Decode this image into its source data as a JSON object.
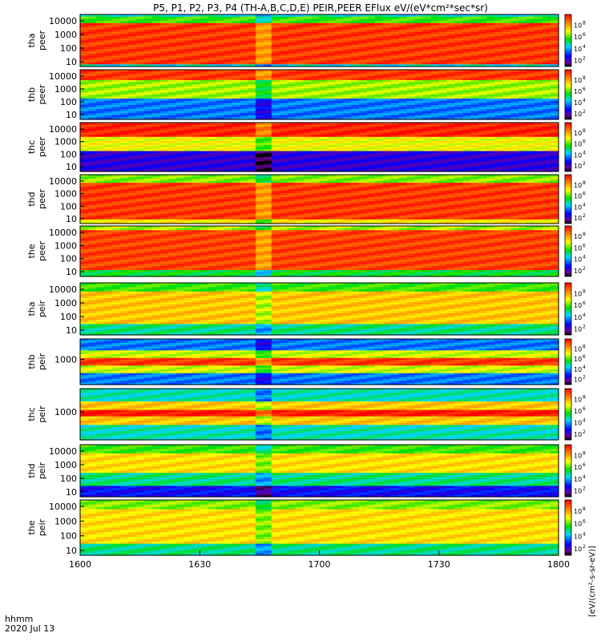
{
  "title": "P5, P1, P2, P3, P4 (TH-A,B,C,D,E) PEIR,PEER EFlux eV/(eV*cm²*sec*sr)",
  "chart_data": {
    "type": "heatmap",
    "title": "P5, P1, P2, P3, P4 (TH-A,B,C,D,E) PEIR,PEER EFlux eV/(eV*cm²*sec*sr)",
    "x_axis": {
      "ticks": [
        "1600",
        "1630",
        "1700",
        "1730",
        "1800"
      ],
      "label_line1": "hhmm",
      "label_line2": "2020 Jul 13",
      "range_hhmm": [
        "1600",
        "1800"
      ]
    },
    "colorbar": {
      "label": "[eV/(cm²-s-sr-eV)]",
      "scale": "log",
      "tick_exponents": [
        2,
        4,
        6,
        8
      ]
    },
    "panels": [
      {
        "probe": "tha",
        "instrument": "peer",
        "ylabel1": "tha",
        "ylabel2": "peer",
        "yticks": [
          "10000",
          "1000",
          "100",
          "10"
        ],
        "yscale": "log",
        "bands": [
          {
            "from": 0.06,
            "to": 0.85,
            "level": 0.93
          },
          {
            "from": 0.85,
            "to": 0.95,
            "level": 0.55
          }
        ],
        "dip_at": 0.38
      },
      {
        "probe": "thb",
        "instrument": "peer",
        "ylabel1": "thb",
        "ylabel2": "peer",
        "yticks": [
          "10000",
          "1000",
          "100",
          "10"
        ],
        "yscale": "log",
        "bands": [
          {
            "from": 0.0,
            "to": 0.42,
            "level": 0.3
          },
          {
            "from": 0.42,
            "to": 0.78,
            "level": 0.62
          },
          {
            "from": 0.78,
            "to": 1.0,
            "level": 0.93
          }
        ],
        "dip_at": 0.38
      },
      {
        "probe": "thc",
        "instrument": "peer",
        "ylabel1": "thc",
        "ylabel2": "peer",
        "yticks": [
          "10000",
          "1000",
          "100",
          "10"
        ],
        "yscale": "log",
        "bands": [
          {
            "from": 0.0,
            "to": 0.4,
            "level": 0.15
          },
          {
            "from": 0.4,
            "to": 0.7,
            "level": 0.68
          },
          {
            "from": 0.7,
            "to": 1.0,
            "level": 0.96
          }
        ],
        "dip_at": 0.38
      },
      {
        "probe": "thd",
        "instrument": "peer",
        "ylabel1": "thd",
        "ylabel2": "peer",
        "yticks": [
          "10000",
          "1000",
          "100",
          "10"
        ],
        "yscale": "log",
        "bands": [
          {
            "from": 0.0,
            "to": 0.1,
            "level": 0.7
          },
          {
            "from": 0.1,
            "to": 0.85,
            "level": 0.93
          },
          {
            "from": 0.85,
            "to": 1.0,
            "level": 0.6
          }
        ],
        "dip_at": 0.38
      },
      {
        "probe": "the",
        "instrument": "peer",
        "ylabel1": "the",
        "ylabel2": "peer",
        "yticks": [
          "10000",
          "1000",
          "100",
          "10"
        ],
        "yscale": "log",
        "bands": [
          {
            "from": 0.0,
            "to": 0.12,
            "level": 0.5
          },
          {
            "from": 0.12,
            "to": 0.9,
            "level": 0.92
          },
          {
            "from": 0.9,
            "to": 1.0,
            "level": 0.62
          }
        ],
        "dip_at": 0.38
      },
      {
        "probe": "tha",
        "instrument": "peir",
        "ylabel1": "tha",
        "ylabel2": "peir",
        "yticks": [
          "10000",
          "1000",
          "100",
          "10"
        ],
        "yscale": "log",
        "bands": [
          {
            "from": 0.0,
            "to": 0.2,
            "level": 0.45
          },
          {
            "from": 0.2,
            "to": 0.85,
            "level": 0.75
          },
          {
            "from": 0.85,
            "to": 1.0,
            "level": 0.55
          }
        ],
        "dip_at": 0.38
      },
      {
        "probe": "thb",
        "instrument": "peir",
        "ylabel1": "thb",
        "ylabel2": "peir",
        "yticks": [
          "1000"
        ],
        "yscale": "log",
        "bands": [
          {
            "from": 0.0,
            "to": 0.25,
            "level": 0.3
          },
          {
            "from": 0.25,
            "to": 0.4,
            "level": 0.65
          },
          {
            "from": 0.4,
            "to": 0.6,
            "level": 0.93
          },
          {
            "from": 0.6,
            "to": 0.75,
            "level": 0.65
          },
          {
            "from": 0.75,
            "to": 1.0,
            "level": 0.3
          }
        ],
        "dip_at": 0.38
      },
      {
        "probe": "thc",
        "instrument": "peir",
        "ylabel1": "thc",
        "ylabel2": "peir",
        "yticks": [
          "1000"
        ],
        "yscale": "log",
        "bands": [
          {
            "from": 0.0,
            "to": 0.3,
            "level": 0.42
          },
          {
            "from": 0.3,
            "to": 0.45,
            "level": 0.75
          },
          {
            "from": 0.45,
            "to": 0.6,
            "level": 0.98
          },
          {
            "from": 0.6,
            "to": 0.75,
            "level": 0.75
          },
          {
            "from": 0.75,
            "to": 1.0,
            "level": 0.42
          }
        ],
        "dip_at": 0.38
      },
      {
        "probe": "thd",
        "instrument": "peir",
        "ylabel1": "thd",
        "ylabel2": "peir",
        "yticks": [
          "10000",
          "1000",
          "100",
          "10"
        ],
        "yscale": "log",
        "bands": [
          {
            "from": 0.0,
            "to": 0.2,
            "level": 0.2
          },
          {
            "from": 0.2,
            "to": 0.45,
            "level": 0.45
          },
          {
            "from": 0.45,
            "to": 0.85,
            "level": 0.72
          },
          {
            "from": 0.85,
            "to": 1.0,
            "level": 0.55
          }
        ],
        "dip_at": 0.38
      },
      {
        "probe": "the",
        "instrument": "peir",
        "ylabel1": "the",
        "ylabel2": "peir",
        "yticks": [
          "10000",
          "1000",
          "100",
          "10"
        ],
        "yscale": "log",
        "bands": [
          {
            "from": 0.0,
            "to": 0.22,
            "level": 0.45
          },
          {
            "from": 0.22,
            "to": 0.85,
            "level": 0.72
          },
          {
            "from": 0.85,
            "to": 1.0,
            "level": 0.6
          }
        ],
        "dip_at": 0.38
      }
    ]
  }
}
